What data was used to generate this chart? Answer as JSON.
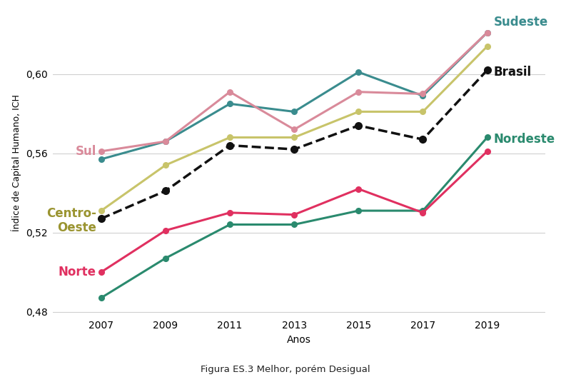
{
  "years": [
    2007,
    2009,
    2011,
    2013,
    2015,
    2017,
    2019
  ],
  "series": {
    "Sudeste": {
      "values": [
        0.557,
        0.566,
        0.585,
        0.581,
        0.601,
        0.589,
        0.621
      ],
      "color": "#3a8c8e",
      "linestyle": "-",
      "linewidth": 2.2,
      "marker": "o",
      "markersize": 5.5,
      "label_color": "#3a8c8e",
      "label_fontsize": 12,
      "label_fontweight": "bold"
    },
    "Sul": {
      "values": [
        0.561,
        0.566,
        0.591,
        0.572,
        0.591,
        0.59,
        0.621
      ],
      "color": "#d98a9a",
      "linestyle": "-",
      "linewidth": 2.2,
      "marker": "o",
      "markersize": 5.5,
      "label_color": "#d98a9a",
      "label_fontsize": 12,
      "label_fontweight": "bold"
    },
    "Centro-Oeste": {
      "values": [
        0.531,
        0.554,
        0.568,
        0.568,
        0.581,
        0.581,
        0.614
      ],
      "color": "#c8c46a",
      "linestyle": "-",
      "linewidth": 2.2,
      "marker": "o",
      "markersize": 5.5,
      "label_color": "#9a9430",
      "label_fontsize": 12,
      "label_fontweight": "bold"
    },
    "Brasil": {
      "values": [
        0.527,
        0.541,
        0.564,
        0.562,
        0.574,
        0.567,
        0.602
      ],
      "color": "#111111",
      "linestyle": "--",
      "linewidth": 2.5,
      "marker": "o",
      "markersize": 7,
      "label_color": "#111111",
      "label_fontsize": 12,
      "label_fontweight": "bold"
    },
    "Nordeste": {
      "values": [
        0.487,
        0.507,
        0.524,
        0.524,
        0.531,
        0.531,
        0.568
      ],
      "color": "#2a8a6e",
      "linestyle": "-",
      "linewidth": 2.2,
      "marker": "o",
      "markersize": 5.5,
      "label_color": "#2a8a6e",
      "label_fontsize": 12,
      "label_fontweight": "bold"
    },
    "Norte": {
      "values": [
        0.5,
        0.521,
        0.53,
        0.529,
        0.542,
        0.53,
        0.561
      ],
      "color": "#e03060",
      "linestyle": "-",
      "linewidth": 2.2,
      "marker": "o",
      "markersize": 5.5,
      "label_color": "#e03060",
      "label_fontsize": 12,
      "label_fontweight": "bold"
    }
  },
  "xlabel": "Anos",
  "ylabel": "Índice de Capital Humano, ICH",
  "ylim": [
    0.478,
    0.632
  ],
  "yticks": [
    0.48,
    0.52,
    0.56,
    0.6
  ],
  "xticks": [
    2007,
    2009,
    2011,
    2013,
    2015,
    2017,
    2019
  ],
  "caption": "Figura ES.3 Melhor, porém Desigual",
  "background_color": "#ffffff",
  "plot_bg_color": "#ffffff",
  "grid_color": "#d0d0d0"
}
